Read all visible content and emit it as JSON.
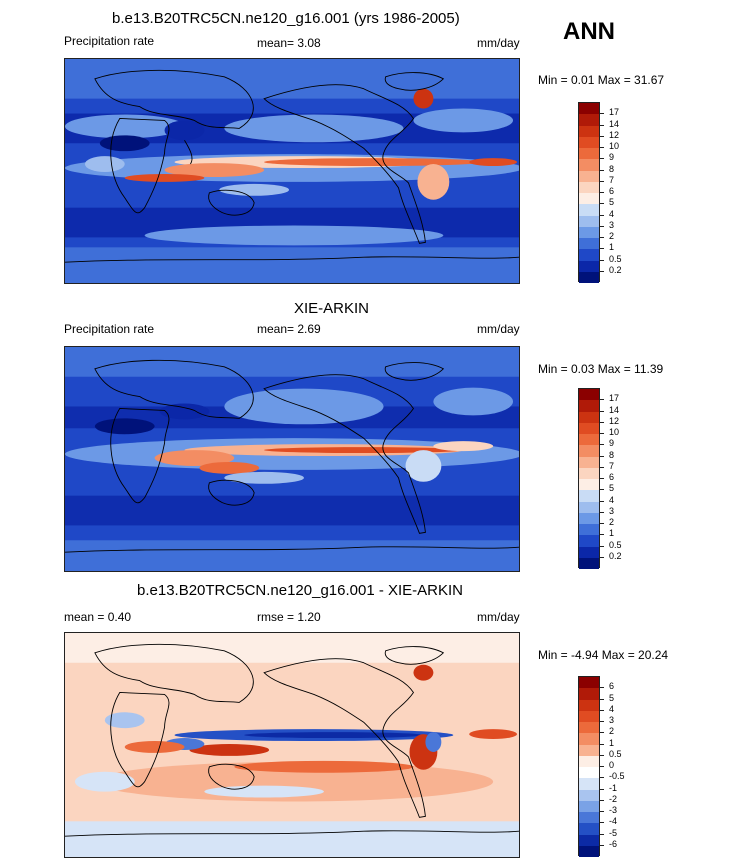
{
  "figure_label": "ANN",
  "panels": [
    {
      "title": "b.e13.B20TRC5CN.ne120_g16.001 (yrs 1986-2005)",
      "left_label": "Precipitation rate",
      "center_label": "mean=   3.08",
      "units": "mm/day",
      "minmax": "Min =   0.01 Max =  31.67",
      "colorbar": {
        "labels": [
          "17",
          "14",
          "12",
          "10",
          "9",
          "8",
          "7",
          "6",
          "5",
          "4",
          "3",
          "2",
          "1",
          "0.5",
          "0.2"
        ],
        "colors": [
          "#8b0000",
          "#b01a08",
          "#cc3311",
          "#e04c22",
          "#ec6a3b",
          "#f38d63",
          "#f8b291",
          "#fbd5c0",
          "#fdeee5",
          "#c9dcf5",
          "#9ebdee",
          "#6c99e6",
          "#3f6fd8",
          "#1f48c7",
          "#0b27a8",
          "#00127a"
        ]
      }
    },
    {
      "title": "XIE-ARKIN",
      "left_label": "Precipitation rate",
      "center_label": "mean=   2.69",
      "units": "mm/day",
      "minmax": "Min =   0.03 Max =  11.39",
      "colorbar": {
        "labels": [
          "17",
          "14",
          "12",
          "10",
          "9",
          "8",
          "7",
          "6",
          "5",
          "4",
          "3",
          "2",
          "1",
          "0.5",
          "0.2"
        ],
        "colors": [
          "#8b0000",
          "#b01a08",
          "#cc3311",
          "#e04c22",
          "#ec6a3b",
          "#f38d63",
          "#f8b291",
          "#fbd5c0",
          "#fdeee5",
          "#c9dcf5",
          "#9ebdee",
          "#6c99e6",
          "#3f6fd8",
          "#1f48c7",
          "#0b27a8",
          "#00127a"
        ]
      }
    },
    {
      "title": "b.e13.B20TRC5CN.ne120_g16.001 - XIE-ARKIN",
      "left_label": "mean =   0.40",
      "center_label": "rmse =   1.20",
      "units": "mm/day",
      "minmax": "Min =  -4.94 Max =  20.24",
      "colorbar": {
        "labels": [
          "6",
          "5",
          "4",
          "3",
          "2",
          "1",
          "0.5",
          "0",
          "-0.5",
          "-1",
          "-2",
          "-3",
          "-4",
          "-5",
          "-6"
        ],
        "colors": [
          "#8b0000",
          "#b01a08",
          "#cc3311",
          "#e04c22",
          "#ec6a3b",
          "#f38d63",
          "#f8b291",
          "#fdeee5",
          "#ffffff",
          "#d6e4f7",
          "#a9c4ef",
          "#7aa2e6",
          "#4a77d8",
          "#2450c5",
          "#0c2aa5",
          "#00127a"
        ]
      }
    }
  ]
}
